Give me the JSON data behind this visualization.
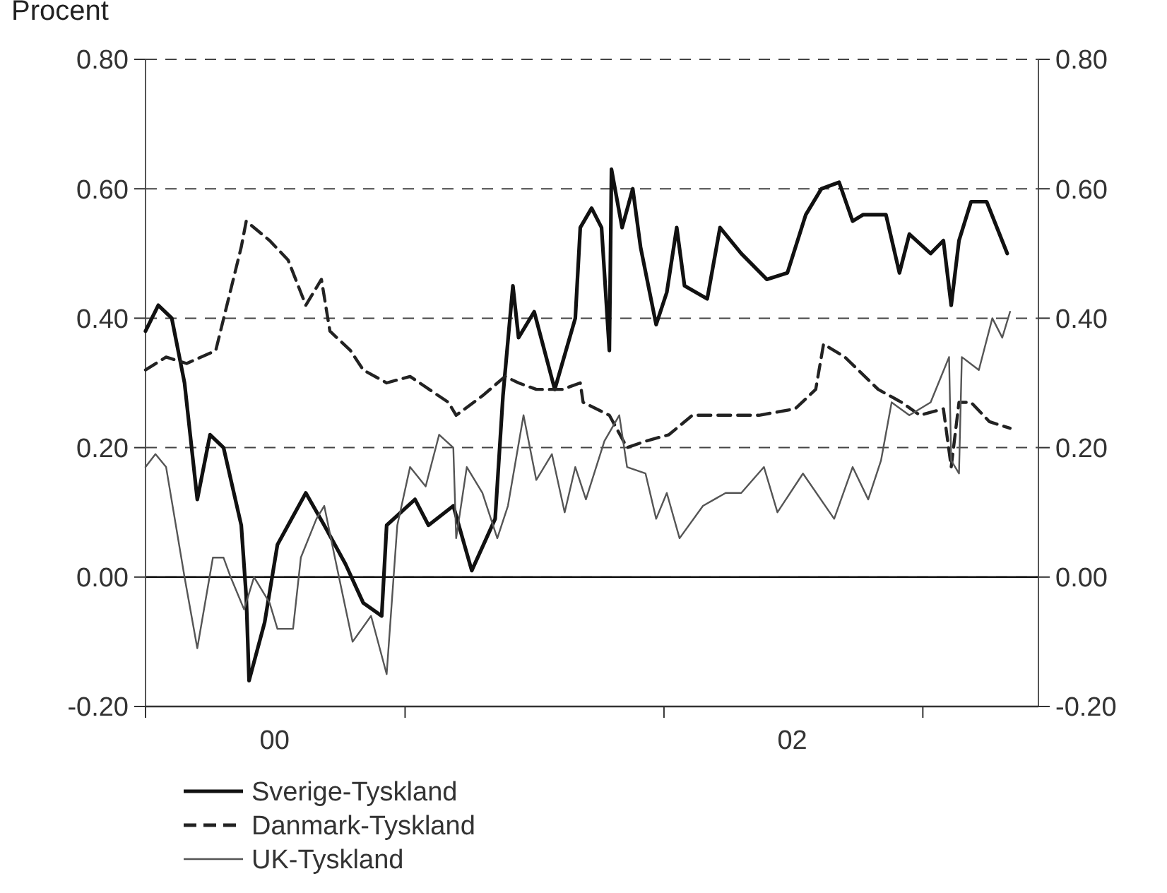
{
  "chart_data": {
    "type": "line",
    "title": "Procent",
    "xlim": [
      "2000-01-01",
      "2003-06-13"
    ],
    "xticks": [
      {
        "value": "2000-01-01",
        "label": null
      },
      {
        "value": "2000-07-01",
        "label": "00"
      },
      {
        "value": "2001-01-01",
        "label": null
      },
      {
        "value": "2002-01-01",
        "label": null
      },
      {
        "value": "2002-07-01",
        "label": "02"
      },
      {
        "value": "2003-01-01",
        "label": null
      }
    ],
    "ylim": [
      -0.2,
      0.8
    ],
    "yticks": [
      {
        "value": -0.2,
        "label": "-0.20"
      },
      {
        "value": 0,
        "label": "0.00"
      },
      {
        "value": 0.2,
        "label": "0.20"
      },
      {
        "value": 0.4,
        "label": "0.40"
      },
      {
        "value": 0.6,
        "label": "0.60"
      },
      {
        "value": 0.8,
        "label": "0.80"
      }
    ],
    "y2lim": [
      -0.2,
      0.8
    ],
    "y2ticks": [
      {
        "value": -0.2,
        "label": "-0.20"
      },
      {
        "value": 0,
        "label": "0.00"
      },
      {
        "value": 0.2,
        "label": "0.20"
      },
      {
        "value": 0.4,
        "label": "0.40"
      },
      {
        "value": 0.6,
        "label": "0.60"
      },
      {
        "value": 0.8,
        "label": "0.80"
      }
    ],
    "grid": "y",
    "legend": "bottom",
    "marker": "none",
    "ref_lines": [
      {
        "axis": "y",
        "value": 0,
        "label": null,
        "color": "#111111",
        "line_style": "solid"
      }
    ],
    "series": [
      {
        "name": "Sverige-Tyskland",
        "color": "#111111",
        "line_style": "solid",
        "x": [
          "2000-01-01",
          "2000-01-19",
          "2000-02-07",
          "2000-02-25",
          "2000-03-14",
          "2000-04-01",
          "2000-04-20",
          "2000-05-15",
          "2000-05-22",
          "2000-05-26",
          "2000-06-17",
          "2000-07-05",
          "2000-08-14",
          "2000-09-09",
          "2000-10-09",
          "2000-11-03",
          "2000-11-29",
          "2000-12-06",
          "2001-01-15",
          "2001-02-03",
          "2001-03-10",
          "2001-04-05",
          "2001-05-08",
          "2001-05-19",
          "2001-06-02",
          "2001-06-10",
          "2001-07-02",
          "2001-07-31",
          "2001-08-29",
          "2001-09-05",
          "2001-09-21",
          "2001-10-05",
          "2001-10-16",
          "2001-10-19",
          "2001-11-03",
          "2001-11-18",
          "2001-11-29",
          "2001-12-21",
          "2002-01-05",
          "2002-01-19",
          "2002-01-30",
          "2002-03-03",
          "2002-03-21",
          "2002-04-20",
          "2002-05-26",
          "2002-06-24",
          "2002-07-20",
          "2002-08-11",
          "2002-09-05",
          "2002-09-24",
          "2002-10-09",
          "2002-11-10",
          "2002-11-29",
          "2002-12-13",
          "2003-01-12",
          "2003-01-30",
          "2003-02-10",
          "2003-02-21",
          "2003-03-10",
          "2003-04-01",
          "2003-04-30"
        ],
        "values": [
          0.38,
          0.42,
          0.4,
          0.3,
          0.12,
          0.22,
          0.2,
          0.08,
          -0.03,
          -0.16,
          -0.07,
          0.05,
          0.13,
          0.08,
          0.02,
          -0.04,
          -0.06,
          0.08,
          0.12,
          0.08,
          0.11,
          0.01,
          0.09,
          0.28,
          0.45,
          0.37,
          0.41,
          0.29,
          0.4,
          0.54,
          0.57,
          0.54,
          0.35,
          0.63,
          0.54,
          0.6,
          0.51,
          0.39,
          0.44,
          0.54,
          0.45,
          0.43,
          0.54,
          0.5,
          0.46,
          0.47,
          0.56,
          0.6,
          0.61,
          0.55,
          0.56,
          0.56,
          0.47,
          0.53,
          0.5,
          0.52,
          0.42,
          0.52,
          0.58,
          0.58,
          0.5
        ]
      },
      {
        "name": "Danmark-Tyskland",
        "color": "#222222",
        "line_style": "dashed",
        "x": [
          "2000-01-01",
          "2000-01-30",
          "2000-02-28",
          "2000-04-09",
          "2000-05-15",
          "2000-05-22",
          "2000-06-24",
          "2000-07-20",
          "2000-08-14",
          "2000-09-05",
          "2000-09-17",
          "2000-10-16",
          "2000-11-03",
          "2000-12-06",
          "2001-01-08",
          "2001-03-03",
          "2001-03-14",
          "2001-04-20",
          "2001-05-22",
          "2001-06-10",
          "2001-07-05",
          "2001-08-11",
          "2001-09-05",
          "2001-09-09",
          "2001-10-16",
          "2001-11-10",
          "2001-12-06",
          "2002-01-08",
          "2002-02-10",
          "2002-03-29",
          "2002-05-15",
          "2002-07-05",
          "2002-08-03",
          "2002-08-14",
          "2002-09-13",
          "2002-10-30",
          "2002-12-02",
          "2002-12-28",
          "2003-01-30",
          "2003-02-10",
          "2003-02-21",
          "2003-03-10",
          "2003-04-05",
          "2003-05-04"
        ],
        "values": [
          0.32,
          0.34,
          0.33,
          0.35,
          0.51,
          0.55,
          0.52,
          0.49,
          0.42,
          0.46,
          0.38,
          0.35,
          0.32,
          0.3,
          0.31,
          0.27,
          0.25,
          0.28,
          0.31,
          0.3,
          0.29,
          0.29,
          0.3,
          0.27,
          0.25,
          0.2,
          0.21,
          0.22,
          0.25,
          0.25,
          0.25,
          0.26,
          0.29,
          0.36,
          0.34,
          0.29,
          0.27,
          0.25,
          0.26,
          0.17,
          0.27,
          0.27,
          0.24,
          0.23
        ]
      },
      {
        "name": "UK-Tyskland",
        "color": "#555555",
        "line_style": "solid",
        "x": [
          "2000-01-01",
          "2000-01-15",
          "2000-01-30",
          "2000-02-25",
          "2000-03-14",
          "2000-04-05",
          "2000-04-20",
          "2000-04-30",
          "2000-05-19",
          "2000-06-02",
          "2000-06-24",
          "2000-07-05",
          "2000-07-27",
          "2000-08-07",
          "2000-08-29",
          "2000-09-09",
          "2000-09-24",
          "2000-10-19",
          "2000-11-14",
          "2000-12-06",
          "2000-12-21",
          "2001-01-08",
          "2001-01-30",
          "2001-02-18",
          "2001-03-10",
          "2001-03-14",
          "2001-03-29",
          "2001-04-20",
          "2001-05-11",
          "2001-05-26",
          "2001-06-17",
          "2001-07-05",
          "2001-07-27",
          "2001-08-14",
          "2001-08-29",
          "2001-09-13",
          "2001-10-09",
          "2001-10-30",
          "2001-11-10",
          "2001-12-06",
          "2001-12-21",
          "2002-01-05",
          "2002-01-23",
          "2002-02-25",
          "2002-03-29",
          "2002-04-20",
          "2002-05-22",
          "2002-06-10",
          "2002-07-16",
          "2002-08-29",
          "2002-09-24",
          "2002-10-16",
          "2002-11-03",
          "2002-11-18",
          "2002-12-13",
          "2003-01-12",
          "2003-02-07",
          "2003-02-10",
          "2003-02-21",
          "2003-02-25",
          "2003-03-21",
          "2003-04-09",
          "2003-04-23",
          "2003-05-04"
        ],
        "values": [
          0.17,
          0.19,
          0.17,
          0.0,
          -0.11,
          0.03,
          0.03,
          0.0,
          -0.05,
          0.0,
          -0.04,
          -0.08,
          -0.08,
          0.03,
          0.09,
          0.11,
          0.03,
          -0.1,
          -0.06,
          -0.15,
          0.08,
          0.17,
          0.14,
          0.22,
          0.2,
          0.06,
          0.17,
          0.13,
          0.06,
          0.11,
          0.25,
          0.15,
          0.19,
          0.1,
          0.17,
          0.12,
          0.21,
          0.25,
          0.17,
          0.16,
          0.09,
          0.13,
          0.06,
          0.11,
          0.13,
          0.13,
          0.17,
          0.1,
          0.16,
          0.09,
          0.17,
          0.12,
          0.18,
          0.27,
          0.25,
          0.27,
          0.34,
          0.18,
          0.16,
          0.34,
          0.32,
          0.4,
          0.37,
          0.41
        ]
      }
    ]
  }
}
